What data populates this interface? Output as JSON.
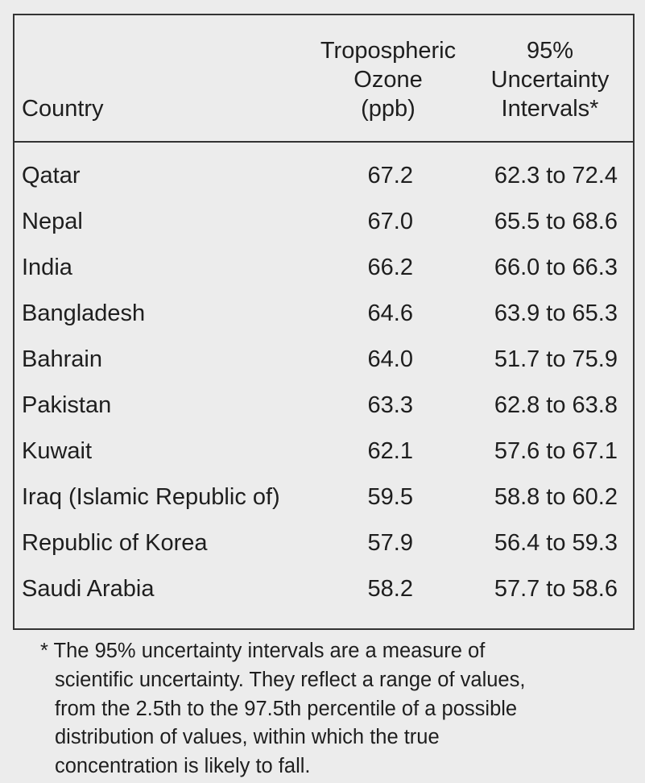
{
  "table": {
    "header": [
      [
        "Country"
      ],
      [
        "Tropospheric",
        "Ozone",
        "(ppb)"
      ],
      [
        "95%",
        "Uncertainty",
        "Intervals*"
      ]
    ],
    "rows": [
      [
        "Qatar",
        "67.2",
        "62.3 to 72.4"
      ],
      [
        "Nepal",
        "67.0",
        "65.5 to 68.6"
      ],
      [
        "India",
        "66.2",
        "66.0 to 66.3"
      ],
      [
        "Bangladesh",
        "64.6",
        "63.9 to 65.3"
      ],
      [
        "Bahrain",
        "64.0",
        "51.7 to 75.9"
      ],
      [
        "Pakistan",
        "63.3",
        "62.8 to 63.8"
      ],
      [
        "Kuwait",
        "62.1",
        "57.6 to 67.1"
      ],
      [
        "Iraq (Islamic Republic of)",
        "59.5",
        "58.8 to 60.2"
      ],
      [
        "Republic of Korea",
        "57.9",
        "56.4 to 59.3"
      ],
      [
        "Saudi Arabia",
        "58.2",
        "57.7 to 58.6"
      ]
    ]
  },
  "footnote": [
    "* The 95% uncertainty intervals are a measure of",
    "scientific uncertainty. They reflect a range of values,",
    "from the 2.5th to the 97.5th percentile of a possible",
    "distribution of values, within which the true",
    "concentration is likely to fall."
  ]
}
